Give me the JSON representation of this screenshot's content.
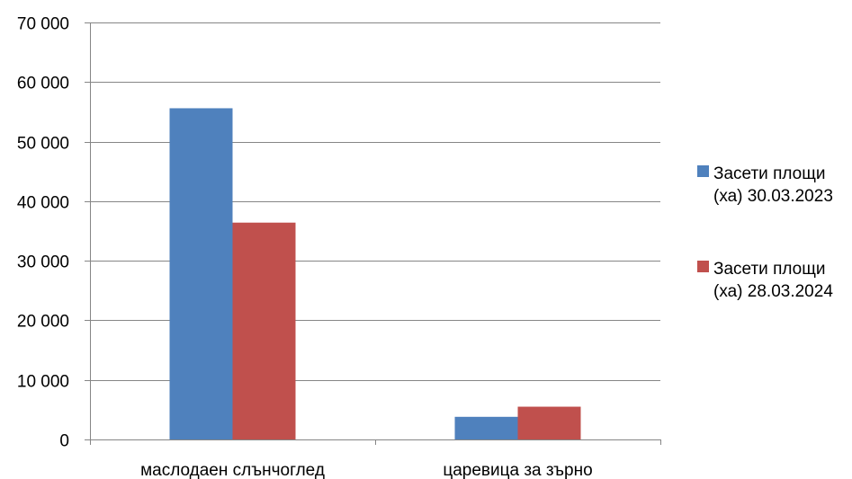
{
  "chart_data": {
    "type": "bar",
    "categories": [
      "маслодаен слънчоглед",
      "царевица за зърно"
    ],
    "series": [
      {
        "name_lines": [
          "Засети площи",
          "(ха) 30.03.2023"
        ],
        "color": "#4F81BD",
        "values": [
          55600,
          3800
        ]
      },
      {
        "name_lines": [
          "Засети площи",
          "(ха) 28.03.2024"
        ],
        "color": "#C0504D",
        "values": [
          36400,
          5500
        ]
      }
    ],
    "ylim": [
      0,
      70000
    ],
    "yticks": [
      0,
      10000,
      20000,
      30000,
      40000,
      50000,
      60000,
      70000
    ],
    "ytick_labels": [
      "0",
      "10 000",
      "20 000",
      "30 000",
      "40 000",
      "50 000",
      "60 000",
      "70 000"
    ],
    "grid": true,
    "legend_position": "right"
  }
}
